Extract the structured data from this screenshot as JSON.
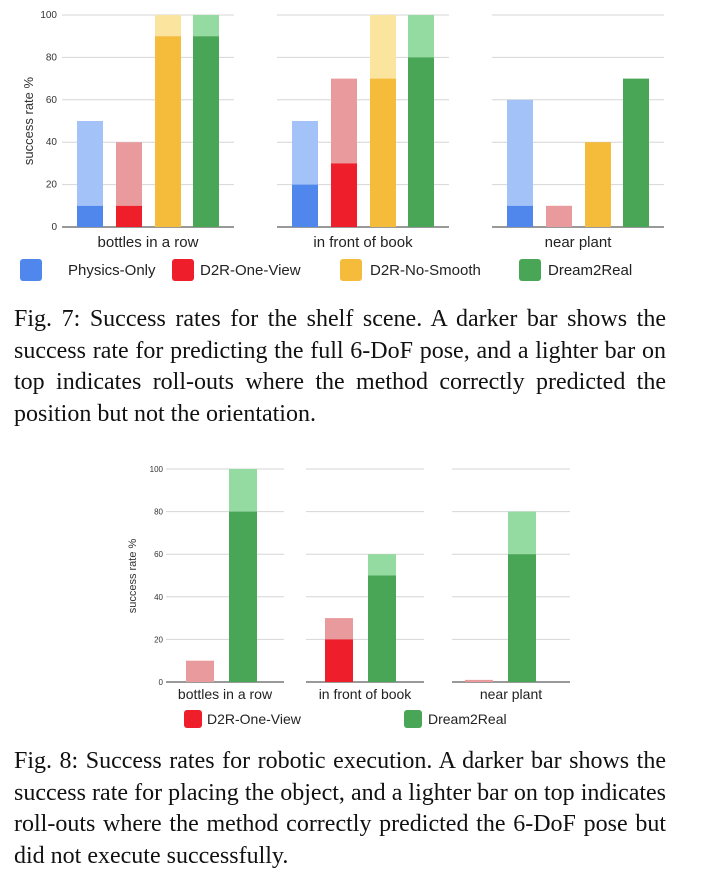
{
  "colors": {
    "Physics-Only": {
      "dark": "#4f87ec",
      "light": "#a3c2f7"
    },
    "D2R-One-View": {
      "dark": "#ee1f2b",
      "light": "#e89a9c"
    },
    "D2R-No-Smooth": {
      "dark": "#f5bb3a",
      "light": "#fbe49e"
    },
    "Dream2Real": {
      "dark": "#4aa657",
      "light": "#93dba0"
    }
  },
  "figures": [
    {
      "caption": "Fig. 7: Success rates for the shelf scene. A darker bar shows the success rate for predicting the full 6-DoF pose, and a lighter bar on top indicates roll-outs where the method correctly predicted the position but not the orientation.",
      "chart_data": {
        "type": "bar",
        "stacked": true,
        "ylabel": "success rate %",
        "ylim": [
          0,
          100
        ],
        "yticks": [
          0,
          20,
          40,
          60,
          80,
          100
        ],
        "grid": true,
        "legend_position": "bottom",
        "categories": [
          "bottles in a row",
          "in front of book",
          "near plant"
        ],
        "series": [
          {
            "name": "Physics-Only",
            "full_pose": [
              10,
              20,
              10
            ],
            "position_only": [
              40,
              30,
              50
            ]
          },
          {
            "name": "D2R-One-View",
            "full_pose": [
              10,
              30,
              0
            ],
            "position_only": [
              30,
              40,
              10
            ]
          },
          {
            "name": "D2R-No-Smooth",
            "full_pose": [
              90,
              70,
              40
            ],
            "position_only": [
              10,
              30,
              0
            ]
          },
          {
            "name": "Dream2Real",
            "full_pose": [
              90,
              80,
              70
            ],
            "position_only": [
              10,
              20,
              0
            ]
          }
        ]
      }
    },
    {
      "caption": "Fig. 8: Success rates for robotic execution. A darker bar shows the success rate for placing the object, and a lighter bar on top indicates roll-outs where the method correctly predicted the 6-DoF pose but did not execute successfully.",
      "chart_data": {
        "type": "bar",
        "stacked": true,
        "ylabel": "success rate %",
        "ylim": [
          0,
          100
        ],
        "yticks": [
          0,
          20,
          40,
          60,
          80,
          100
        ],
        "grid": true,
        "legend_position": "bottom",
        "categories": [
          "bottles in a row",
          "in front of book",
          "near plant"
        ],
        "series": [
          {
            "name": "D2R-One-View",
            "placed": [
              0,
              20,
              0
            ],
            "pose_only": [
              10,
              10,
              1
            ]
          },
          {
            "name": "Dream2Real",
            "placed": [
              80,
              50,
              60
            ],
            "pose_only": [
              20,
              10,
              20
            ]
          }
        ]
      }
    }
  ]
}
